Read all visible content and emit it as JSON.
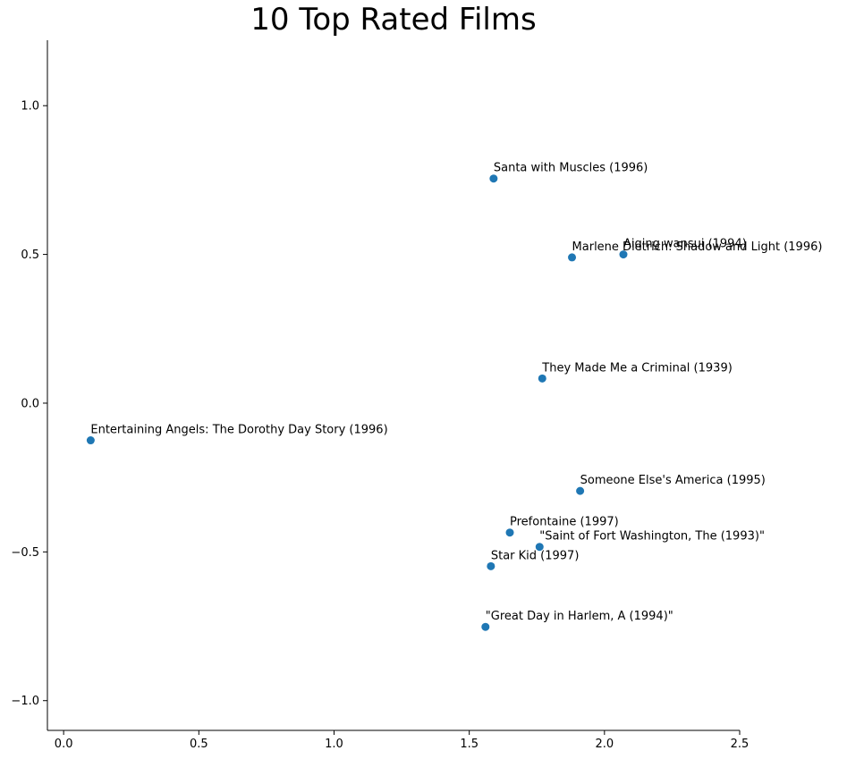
{
  "chart_data": {
    "type": "scatter",
    "title": "10 Top Rated Films",
    "xlabel": "",
    "ylabel": "",
    "xlim": [
      -0.06,
      2.5
    ],
    "ylim": [
      -1.1,
      1.22
    ],
    "xticks": [
      0.0,
      0.5,
      1.0,
      1.5,
      2.0,
      2.5
    ],
    "xtick_labels": [
      "0.0",
      "0.5",
      "1.0",
      "1.5",
      "2.0",
      "2.5"
    ],
    "yticks": [
      -1.0,
      -0.5,
      0.0,
      0.5,
      1.0
    ],
    "ytick_labels": [
      "−1.0",
      "−0.5",
      "0.0",
      "0.5",
      "1.0"
    ],
    "grid": false,
    "point_color": "#1f77b4",
    "points": [
      {
        "x": 1.59,
        "y": 0.755,
        "label": "Santa with Muscles (1996)"
      },
      {
        "x": 2.07,
        "y": 0.5,
        "label": "Aiqing wansui (1994)"
      },
      {
        "x": 1.88,
        "y": 0.49,
        "label": "Marlene Dietrich: Shadow and Light (1996)"
      },
      {
        "x": 1.77,
        "y": 0.083,
        "label": "They Made Me a Criminal (1939)"
      },
      {
        "x": 0.1,
        "y": -0.125,
        "label": "Entertaining Angels: The Dorothy Day Story (1996)"
      },
      {
        "x": 1.91,
        "y": -0.295,
        "label": "Someone Else's America (1995)"
      },
      {
        "x": 1.65,
        "y": -0.435,
        "label": "Prefontaine (1997)"
      },
      {
        "x": 1.76,
        "y": -0.483,
        "label": "\"Saint of Fort Washington, The (1993)\""
      },
      {
        "x": 1.58,
        "y": -0.548,
        "label": "Star Kid (1997)"
      },
      {
        "x": 1.56,
        "y": -0.752,
        "label": "\"Great Day in Harlem, A (1994)\""
      }
    ]
  }
}
